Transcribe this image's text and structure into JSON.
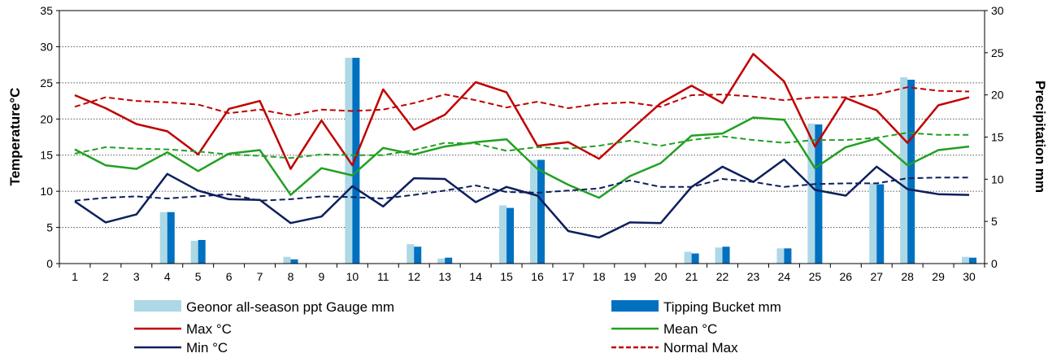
{
  "chart_data": {
    "type": "bar+line",
    "title": "",
    "xlabel": "",
    "ylabel": "Temperature°C",
    "y2label": "Precipitation mm",
    "ylim": [
      0,
      35
    ],
    "y2lim": [
      0,
      30
    ],
    "yticks": [
      "0",
      "5",
      "10",
      "15",
      "20",
      "25",
      "30",
      "35"
    ],
    "y2ticks": [
      "0",
      "5",
      "10",
      "15",
      "20",
      "25",
      "30"
    ],
    "grid": "horizontal-dotted",
    "legend_position": "bottom",
    "categories": [
      "1",
      "2",
      "3",
      "4",
      "5",
      "6",
      "7",
      "8",
      "9",
      "10",
      "11",
      "12",
      "13",
      "14",
      "15",
      "16",
      "17",
      "18",
      "19",
      "20",
      "21",
      "22",
      "23",
      "24",
      "25",
      "26",
      "27",
      "28",
      "29",
      "30"
    ],
    "bar_series": [
      {
        "name": "Geonor all-season ppt Gauge mm",
        "color": "#add8e6",
        "axis": "right",
        "values": [
          0,
          0,
          0,
          6.1,
          2.7,
          0,
          0,
          0.8,
          0,
          24.4,
          0,
          2.3,
          0.6,
          0,
          6.9,
          12.3,
          0,
          0,
          0,
          0,
          1.4,
          1.9,
          0,
          1.8,
          16.6,
          0,
          9.5,
          22.1,
          0,
          0.8
        ]
      },
      {
        "name": "Tipping Bucket mm",
        "color": "#0070c0",
        "axis": "right",
        "values": [
          0,
          0,
          0,
          6.1,
          2.8,
          0,
          0,
          0.5,
          0,
          24.4,
          0,
          2.0,
          0.7,
          0,
          6.6,
          12.3,
          0,
          0,
          0,
          0,
          1.2,
          2.0,
          0,
          1.8,
          16.5,
          0,
          9.4,
          21.8,
          0,
          0.7
        ]
      }
    ],
    "line_series": [
      {
        "name": "Max °C",
        "color": "#c00000",
        "dash": "solid",
        "values": [
          23.3,
          21.5,
          19.3,
          18.3,
          15.1,
          21.4,
          22.5,
          13.1,
          19.8,
          13.6,
          24.1,
          18.5,
          20.6,
          25.1,
          23.7,
          16.3,
          16.8,
          14.5,
          18.4,
          22.2,
          24.6,
          22.2,
          29.0,
          25.2,
          16.2,
          22.9,
          21.2,
          16.7,
          21.9,
          23.0
        ]
      },
      {
        "name": "Mean °C",
        "color": "#22a022",
        "dash": "solid",
        "values": [
          15.8,
          13.6,
          13.1,
          15.4,
          12.8,
          15.2,
          15.7,
          9.5,
          13.2,
          12.2,
          16.0,
          15.1,
          16.2,
          16.8,
          17.2,
          13.1,
          10.9,
          9.1,
          12.1,
          13.9,
          17.7,
          18.0,
          20.2,
          19.9,
          13.2,
          16.1,
          17.3,
          13.6,
          15.7,
          16.2
        ]
      },
      {
        "name": "Min °C",
        "color": "#0d1f5c",
        "dash": "solid",
        "values": [
          8.6,
          5.7,
          6.8,
          12.4,
          10.1,
          8.9,
          8.8,
          5.6,
          6.5,
          10.7,
          7.9,
          11.8,
          11.7,
          8.5,
          10.6,
          9.4,
          4.5,
          3.6,
          5.7,
          5.6,
          10.6,
          13.4,
          11.3,
          14.4,
          10.2,
          9.4,
          13.4,
          10.3,
          9.6,
          9.5
        ]
      },
      {
        "name": "Normal Max",
        "color": "#c00000",
        "dash": "dashed",
        "values": [
          21.7,
          23.0,
          22.5,
          22.3,
          22.0,
          20.8,
          21.3,
          20.5,
          21.3,
          21.1,
          21.3,
          22.2,
          23.4,
          22.6,
          21.6,
          22.4,
          21.5,
          22.1,
          22.3,
          21.7,
          23.3,
          23.4,
          23.1,
          22.6,
          23.0,
          23.0,
          23.4,
          24.4,
          23.9,
          23.8
        ]
      },
      {
        "name": "",
        "color": "#22a022",
        "dash": "dashed",
        "values": [
          15.2,
          16.1,
          15.9,
          15.8,
          15.5,
          15.1,
          14.9,
          14.6,
          15.1,
          15.0,
          15.0,
          15.7,
          16.7,
          16.6,
          15.6,
          16.1,
          15.9,
          16.3,
          17.0,
          16.3,
          17.1,
          17.6,
          17.1,
          16.7,
          17.1,
          17.1,
          17.4,
          18.1,
          17.8,
          17.8
        ]
      },
      {
        "name": "",
        "color": "#0d1f5c",
        "dash": "dashed",
        "values": [
          8.7,
          9.1,
          9.3,
          9.0,
          9.3,
          9.6,
          8.7,
          8.9,
          9.3,
          9.2,
          9.0,
          9.5,
          10.1,
          10.8,
          9.9,
          9.8,
          10.1,
          10.4,
          11.5,
          10.6,
          10.6,
          11.7,
          11.3,
          10.6,
          11.0,
          11.1,
          11.1,
          11.8,
          11.9,
          11.9
        ]
      }
    ]
  }
}
